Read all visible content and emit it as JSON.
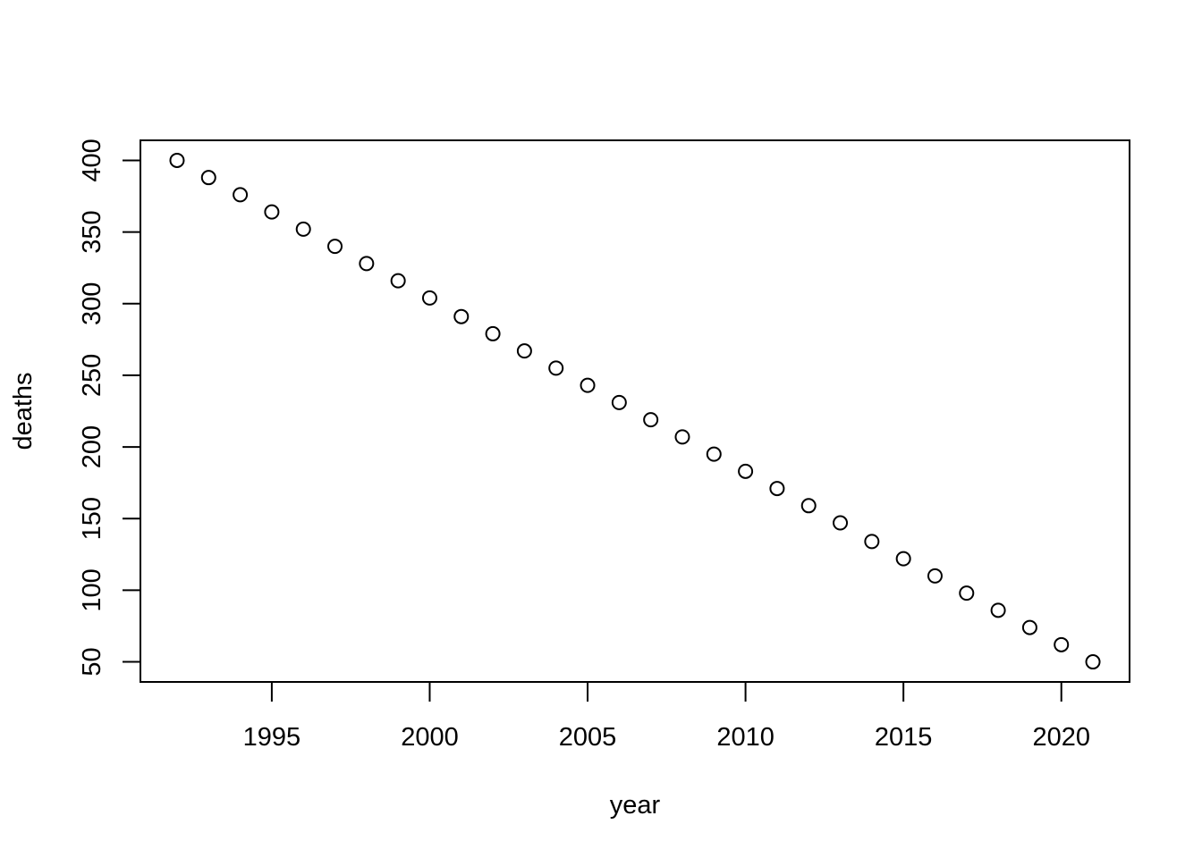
{
  "chart_data": {
    "type": "scatter",
    "x_label": "year",
    "y_label": "deaths",
    "x": [
      1992,
      1993,
      1994,
      1995,
      1996,
      1997,
      1998,
      1999,
      2000,
      2001,
      2002,
      2003,
      2004,
      2005,
      2006,
      2007,
      2008,
      2009,
      2010,
      2011,
      2012,
      2013,
      2014,
      2015,
      2016,
      2017,
      2018,
      2019,
      2020,
      2021
    ],
    "values": [
      400,
      388,
      376,
      364,
      352,
      340,
      328,
      316,
      304,
      291,
      279,
      267,
      255,
      243,
      231,
      219,
      207,
      195,
      183,
      171,
      159,
      147,
      134,
      122,
      110,
      98,
      86,
      74,
      62,
      50
    ],
    "color": "#000000",
    "xlim": [
      1990.84,
      2022.16
    ],
    "ylim": [
      36,
      414
    ],
    "xticks": [
      1995,
      2000,
      2005,
      2010,
      2015,
      2020
    ],
    "yticks": [
      50,
      100,
      150,
      200,
      250,
      300,
      350,
      400
    ]
  }
}
